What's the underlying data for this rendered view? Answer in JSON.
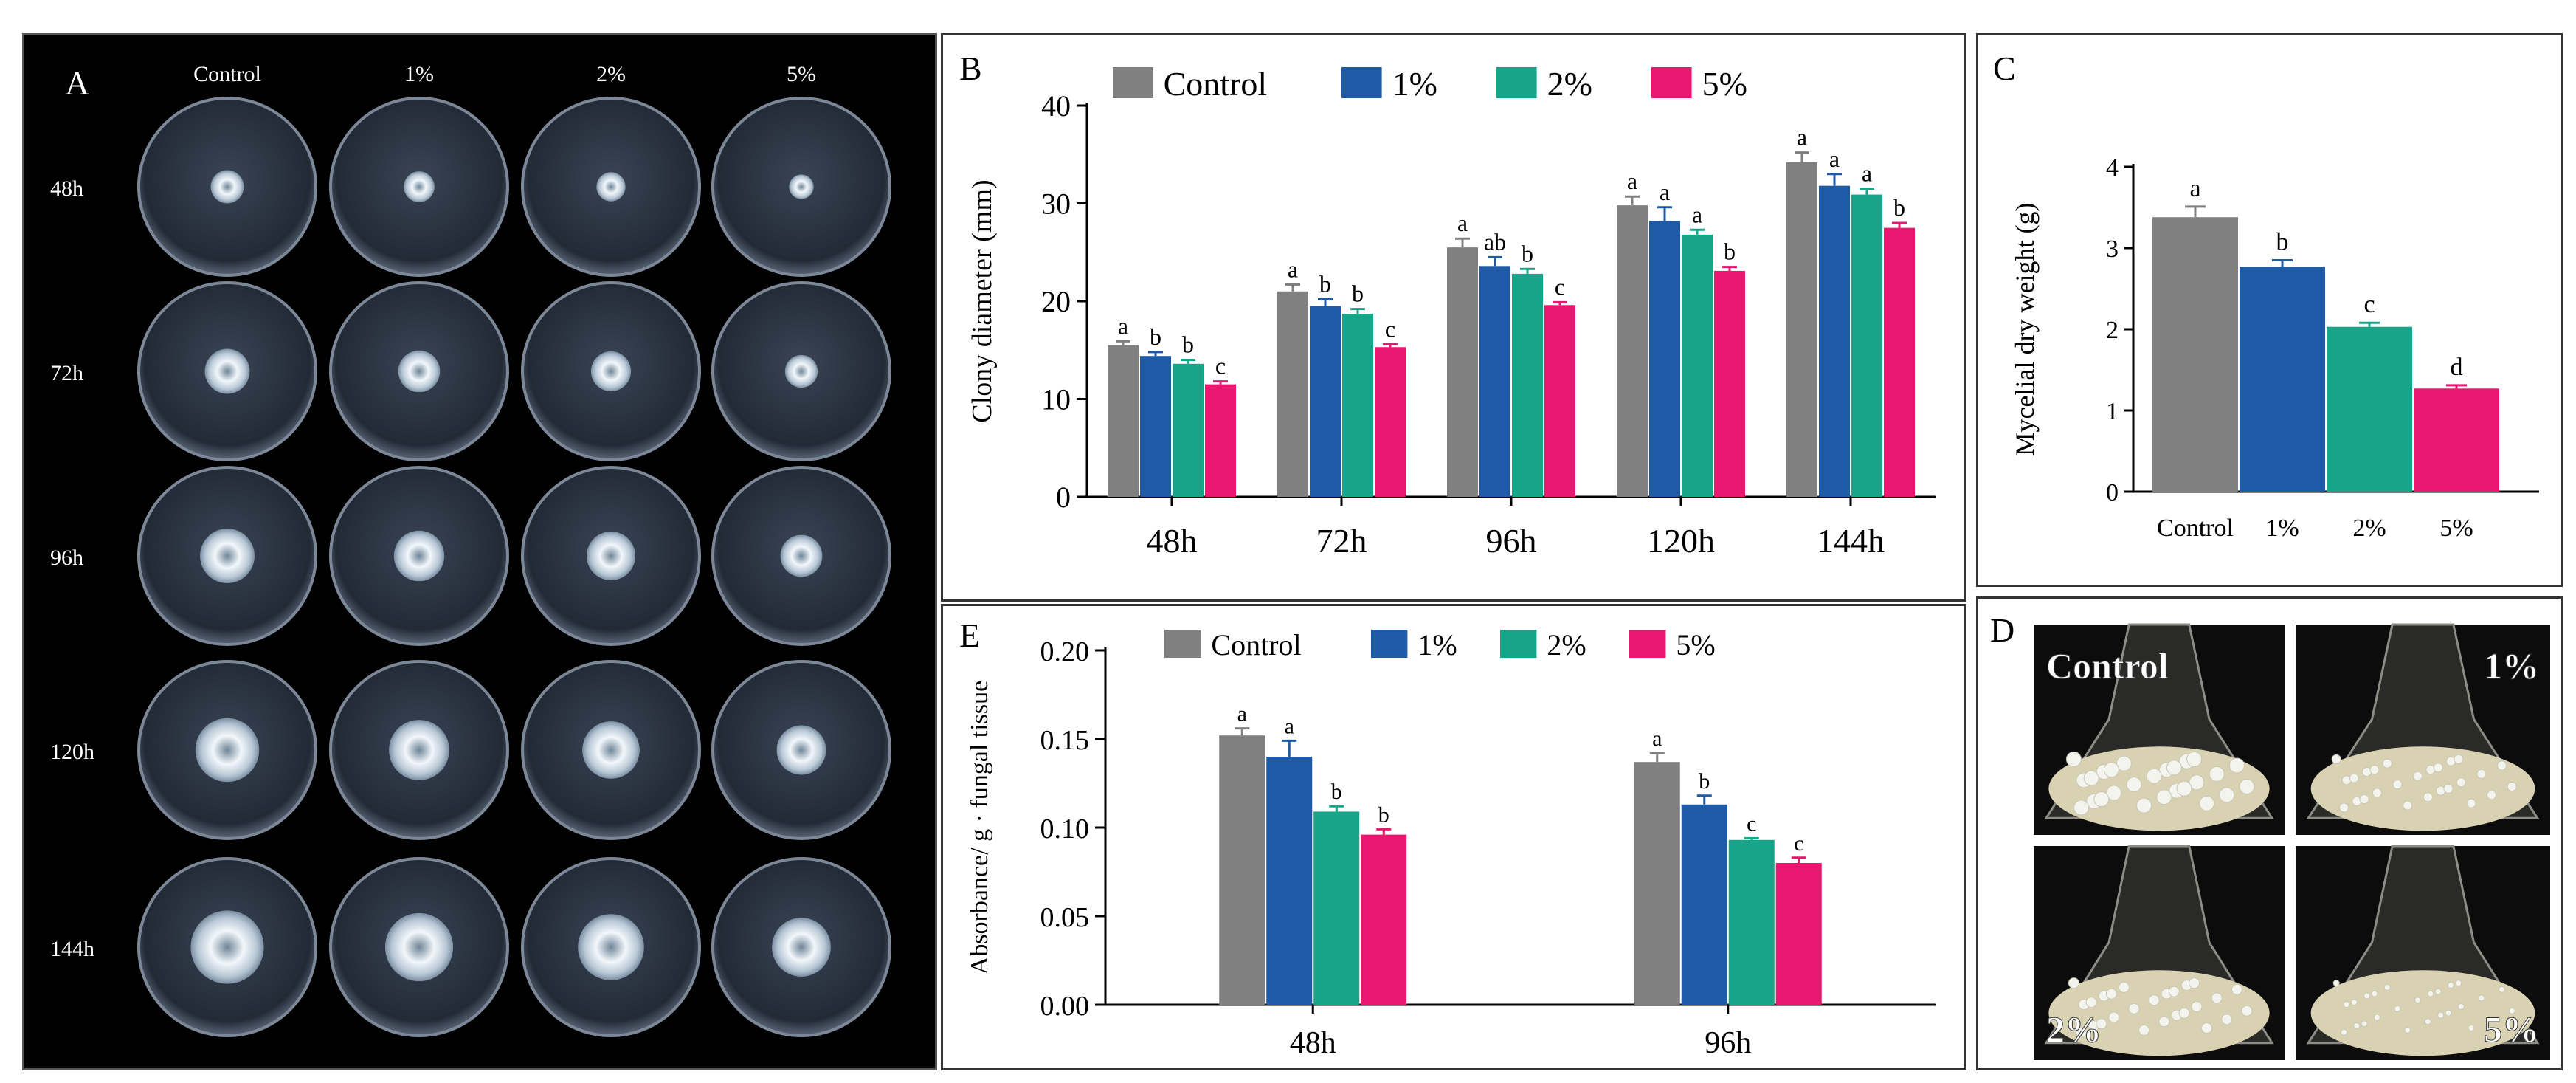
{
  "panel_a": {
    "label": "A",
    "columns": [
      "Control",
      "1%",
      "2%",
      "5%"
    ],
    "rows": [
      "48h",
      "72h",
      "96h",
      "120h",
      "144h"
    ],
    "plate_colony_diameter_mm": [
      [
        15.5,
        14.4,
        13.6,
        11.5
      ],
      [
        21.0,
        19.5,
        18.7,
        15.3
      ],
      [
        25.5,
        23.6,
        22.8,
        19.6
      ],
      [
        29.8,
        28.2,
        26.8,
        23.1
      ],
      [
        34.2,
        31.8,
        30.9,
        27.5
      ]
    ],
    "colors": {
      "background": "#000000",
      "plate": "#2c3442",
      "colony": "#e6eef6"
    }
  },
  "panel_d": {
    "label": "D",
    "images": [
      "Control",
      "1%",
      "2%",
      "5%"
    ]
  },
  "colors": {
    "Control": "#808080",
    "1%": "#1f5aa6",
    "2%": "#17a589",
    "5%": "#e8176f"
  },
  "chart_data": [
    {
      "id": "B",
      "type": "bar",
      "panel_label": "B",
      "categories": [
        "48h",
        "72h",
        "96h",
        "120h",
        "144h"
      ],
      "series": [
        {
          "name": "Control",
          "values": [
            15.5,
            21.0,
            25.5,
            29.8,
            34.2
          ],
          "errors": [
            0.4,
            0.7,
            0.9,
            0.9,
            1.0
          ],
          "letters": [
            "a",
            "a",
            "a",
            "a",
            "a"
          ]
        },
        {
          "name": "1%",
          "values": [
            14.4,
            19.5,
            23.6,
            28.2,
            31.8
          ],
          "errors": [
            0.4,
            0.7,
            0.9,
            1.4,
            1.2
          ],
          "letters": [
            "b",
            "b",
            "ab",
            "a",
            "a"
          ]
        },
        {
          "name": "2%",
          "values": [
            13.6,
            18.7,
            22.8,
            26.8,
            30.9
          ],
          "errors": [
            0.4,
            0.5,
            0.5,
            0.5,
            0.6
          ],
          "letters": [
            "b",
            "b",
            "b",
            "a",
            "a"
          ]
        },
        {
          "name": "5%",
          "values": [
            11.5,
            15.3,
            19.6,
            23.1,
            27.5
          ],
          "errors": [
            0.3,
            0.3,
            0.3,
            0.4,
            0.5
          ],
          "letters": [
            "c",
            "c",
            "c",
            "b",
            "b"
          ]
        }
      ],
      "ylabel": "Clony diameter (mm)",
      "xlabel": "",
      "ylim": [
        0,
        40
      ],
      "yticks": [
        "0",
        "10",
        "20",
        "30",
        "40"
      ],
      "legend": "top"
    },
    {
      "id": "C",
      "type": "bar",
      "panel_label": "C",
      "categories": [
        "Control",
        "1%",
        "2%",
        "5%"
      ],
      "values": [
        3.38,
        2.77,
        2.03,
        1.27
      ],
      "errors": [
        0.13,
        0.08,
        0.05,
        0.04
      ],
      "letters": [
        "a",
        "b",
        "c",
        "d"
      ],
      "ylabel": "Mycelial dry weight (g)",
      "xlabel": "",
      "ylim": [
        0,
        4
      ],
      "yticks": [
        "0",
        "1",
        "2",
        "3",
        "4"
      ]
    },
    {
      "id": "E",
      "type": "bar",
      "panel_label": "E",
      "categories": [
        "48h",
        "96h"
      ],
      "series": [
        {
          "name": "Control",
          "values": [
            0.152,
            0.137
          ],
          "errors": [
            0.004,
            0.005
          ],
          "letters": [
            "a",
            "a"
          ]
        },
        {
          "name": "1%",
          "values": [
            0.14,
            0.113
          ],
          "errors": [
            0.009,
            0.005
          ],
          "letters": [
            "a",
            "b"
          ]
        },
        {
          "name": "2%",
          "values": [
            0.109,
            0.093
          ],
          "errors": [
            0.003,
            0.001
          ],
          "letters": [
            "b",
            "c"
          ]
        },
        {
          "name": "5%",
          "values": [
            0.096,
            0.08
          ],
          "errors": [
            0.003,
            0.003
          ],
          "letters": [
            "b",
            "c"
          ]
        }
      ],
      "ylabel": "Absorbance/ g · fungal tissue",
      "xlabel": "",
      "ylim": [
        0,
        0.2
      ],
      "yticks": [
        "0.00",
        "0.05",
        "0.10",
        "0.15",
        "0.20"
      ],
      "legend": "top"
    }
  ]
}
